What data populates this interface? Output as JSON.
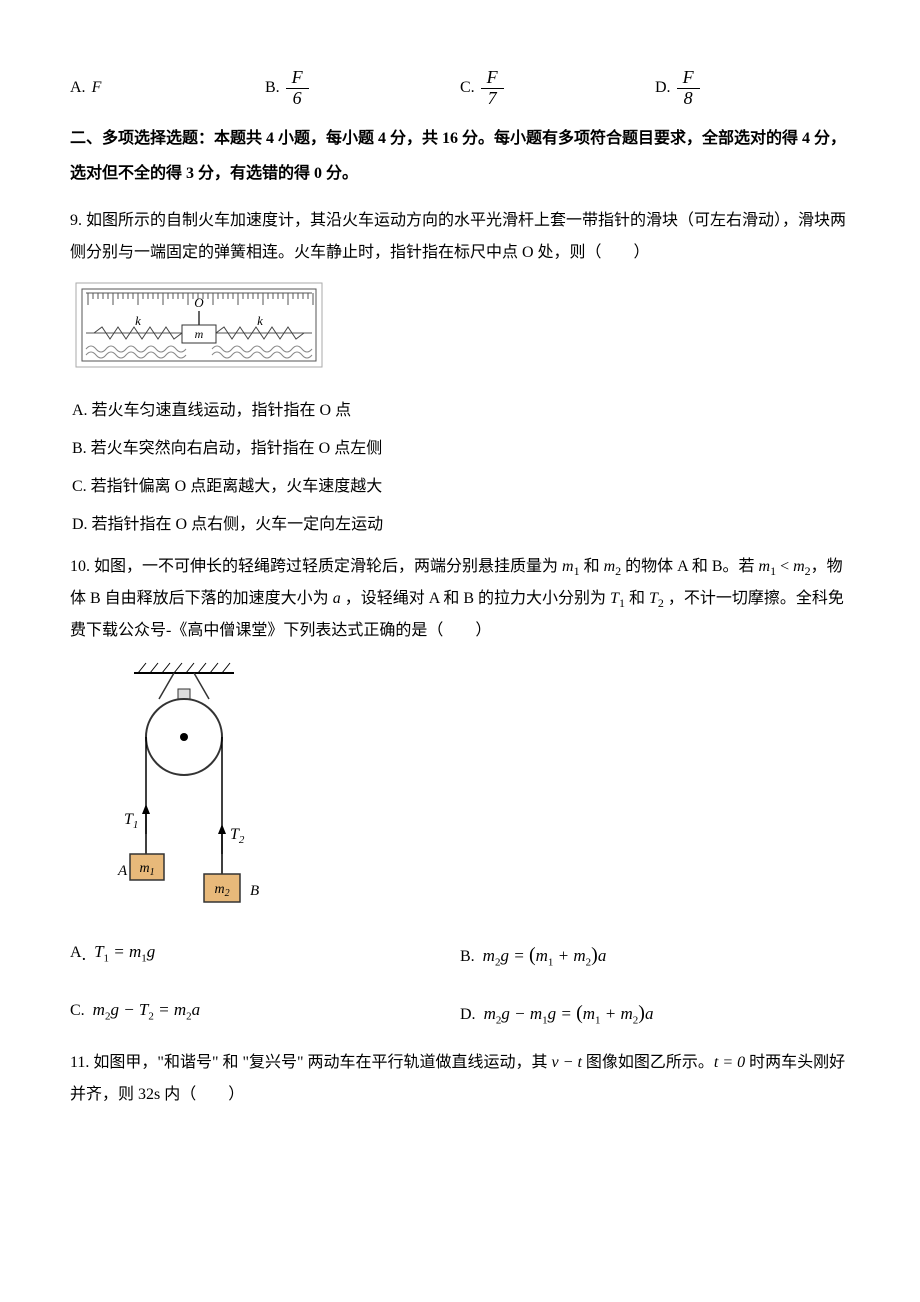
{
  "q8_options": {
    "a_label": "A.",
    "a_text": "F",
    "b_label": "B.",
    "b_num": "F",
    "b_den": "6",
    "c_label": "C.",
    "c_num": "F",
    "c_den": "7",
    "d_label": "D.",
    "d_num": "F",
    "d_den": "8"
  },
  "section2_heading": "二、多项选择选题：本题共 4 小题，每小题 4 分，共 16 分。每小题有多项符合题目要求，全部选对的得 4 分，选对但不全的得 3 分，有选错的得 0 分。",
  "q9": {
    "text": "9. 如图所示的自制火车加速度计，其沿火车运动方向的水平光滑杆上套一带指针的滑块（可左右滑动），滑块两侧分别与一端固定的弹簧相连。火车静止时，指针指在标尺中点 O 处，则（　　）",
    "figure": {
      "label_O": "O",
      "label_k_left": "k",
      "label_k_right": "k",
      "label_m": "m",
      "frame_color": "#333333",
      "spring_color": "#444444",
      "block_fill": "#ffffff",
      "ruler_tick_color": "#555555"
    },
    "choice_a": "A. 若火车匀速直线运动，指针指在 O 点",
    "choice_b": "B. 若火车突然向右启动，指针指在 O 点左侧",
    "choice_c": "C. 若指针偏离 O 点距离越大，火车速度越大",
    "choice_d": "D. 若指针指在 O 点右侧，火车一定向左运动"
  },
  "q10": {
    "text_prefix": "10. 如图，一不可伸长的轻绳跨过轻质定滑轮后，两端分别悬挂质量为 ",
    "m1": "m",
    "m1_sub": "1",
    "text_mid1": " 和 ",
    "m2": "m",
    "m2_sub": "2",
    "text_mid2": " 的物体 A 和 B。若 ",
    "text_mid3": "，物体 B 自由释放后下落的加速度大小为 ",
    "a_var": "a",
    "text_mid4": " ，设轻绳对 A 和 B 的拉力大小分别为 ",
    "T1": "T",
    "T1_sub": "1",
    "text_mid5": " 和 ",
    "T2": "T",
    "T2_sub": "2",
    "text_mid6": " ，不计一切摩擦。全科免费下载公众号-《高中僧课堂》下列表达式正确的是（　　）",
    "figure": {
      "ceiling_hatch_color": "#000000",
      "pulley_stroke": "#333333",
      "pulley_fill": "#ffffff",
      "rope_color": "#000000",
      "block_fill": "#e8b97a",
      "block_stroke": "#333333",
      "label_T1": "T",
      "label_T1_sub": "1",
      "label_T2": "T",
      "label_T2_sub": "2",
      "label_A": "A",
      "label_B": "B",
      "label_m1": "m",
      "label_m1_sub": "1",
      "label_m2": "m",
      "label_m2_sub": "2"
    },
    "opt_a_label": "A",
    "opt_a_math": "T<sub class=\"sub2\">1</sub> = m<sub class=\"sub2\">1</sub>g",
    "opt_b_label": "B.",
    "opt_b_math": "m<sub class=\"sub2\">2</sub>g = <span class=\"paren\">(</span>m<sub class=\"sub2\">1</sub> + m<sub class=\"sub2\">2</sub><span class=\"paren\">)</span>a",
    "opt_c_label": "C.",
    "opt_c_math": "m<sub class=\"sub2\">2</sub>g − T<sub class=\"sub2\">2</sub> = m<sub class=\"sub2\">2</sub>a",
    "opt_d_label": "D.",
    "opt_d_math": "m<sub class=\"sub2\">2</sub>g − m<sub class=\"sub2\">1</sub>g = <span class=\"paren\">(</span>m<sub class=\"sub2\">1</sub> + m<sub class=\"sub2\">2</sub><span class=\"paren\">)</span>a"
  },
  "q11": {
    "text_prefix": "11. 如图甲，\"和谐号\" 和 \"复兴号\" 两动车在平行轨道做直线运动，其 ",
    "vt": "v − t",
    "text_mid1": " 图像如图乙所示。",
    "t0": "t = 0",
    "text_mid2": " 时两车头刚好并齐，则 32s 内（　　）"
  }
}
